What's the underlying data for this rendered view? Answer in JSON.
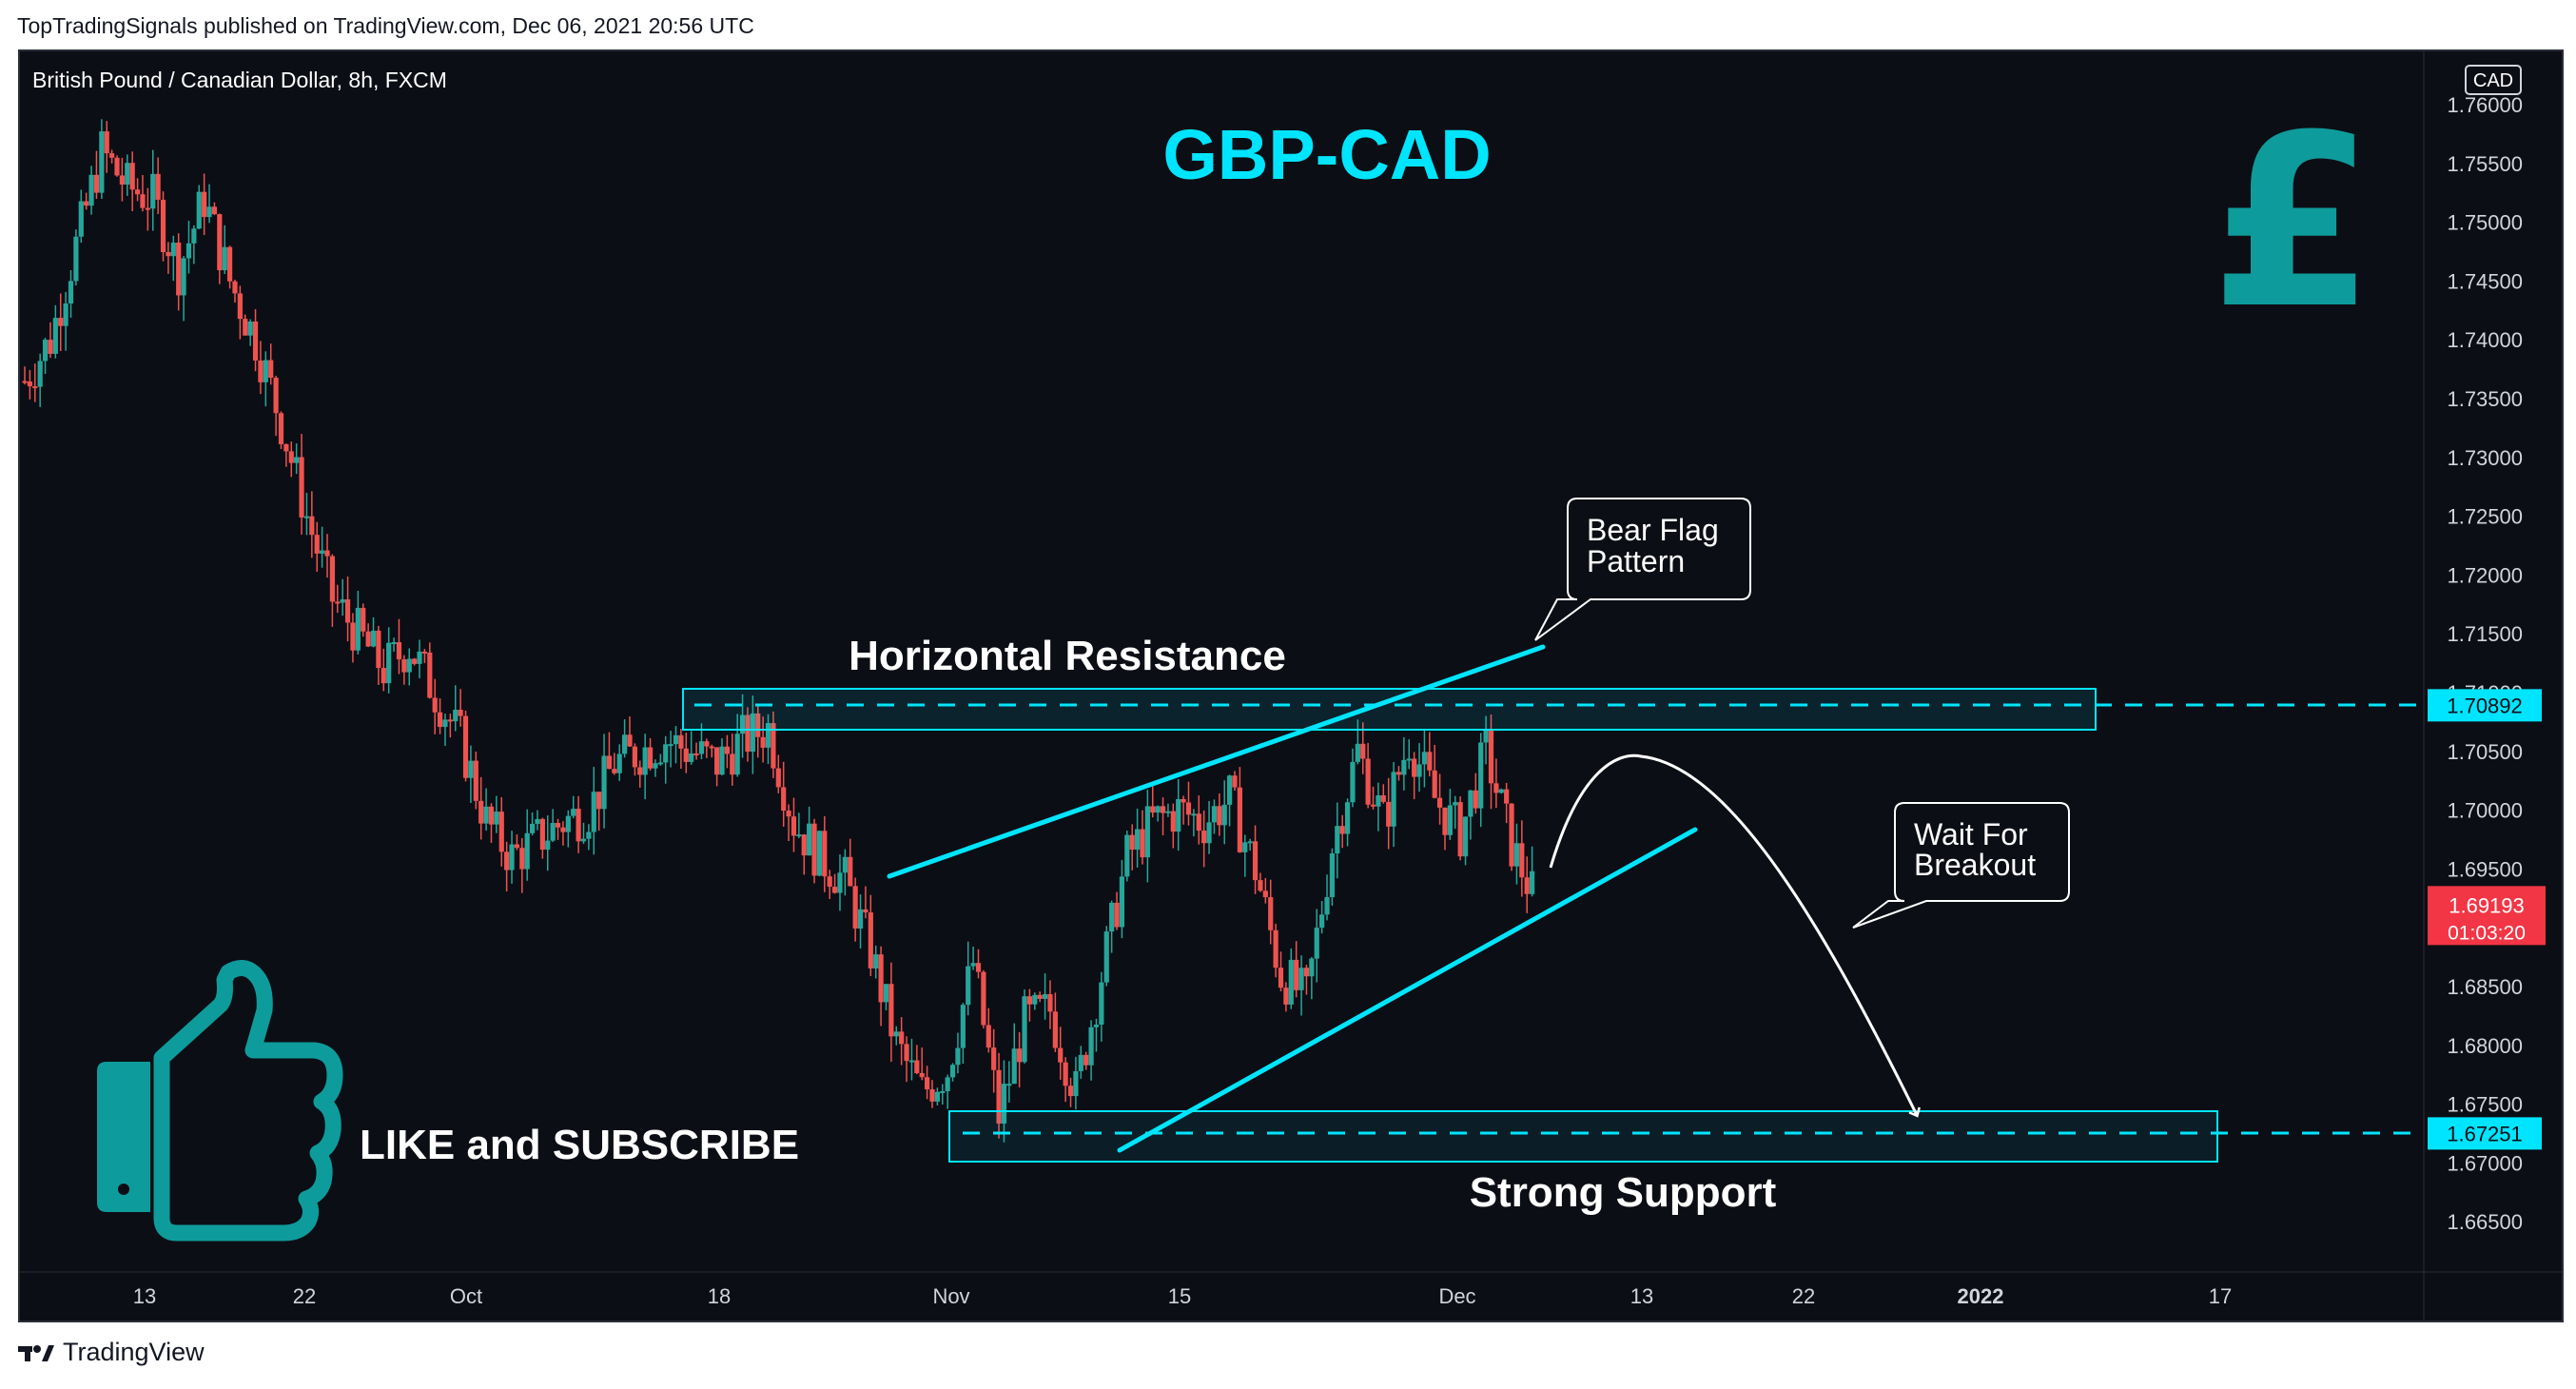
{
  "header": {
    "publisher_line": "TopTradingSignals published on TradingView.com, Dec 06, 2021 20:56 UTC"
  },
  "footer": {
    "brand": "TradingView"
  },
  "colors": {
    "background": "#0c0e15",
    "up": "#26a69a",
    "down": "#ef5350",
    "accent": "#00e5ff",
    "teal_icon": "#0e9b9b",
    "annotation": "#ffffff"
  },
  "chart_data": {
    "type": "candlestick",
    "symbol_line": "British Pound / Canadian Dollar, 8h, FXCM",
    "currency": "CAD",
    "title": "GBP-CAD",
    "ylim": [
      1.6625,
      1.7625
    ],
    "y_ticks": [
      "1.76000",
      "1.75500",
      "1.75000",
      "1.74500",
      "1.74000",
      "1.73500",
      "1.73000",
      "1.72500",
      "1.72000",
      "1.71500",
      "1.71000",
      "1.70500",
      "1.70000",
      "1.69500",
      "1.69000",
      "1.68500",
      "1.68000",
      "1.67500",
      "1.67000",
      "1.66500"
    ],
    "x_ticks": [
      "13",
      "22",
      "Oct",
      "18",
      "Nov",
      "15",
      "Dec",
      "13",
      "22",
      "2022",
      "17"
    ],
    "price_labels": [
      {
        "value": 1.70892,
        "text": "1.70892",
        "style": "cyan"
      },
      {
        "value": 1.67251,
        "text": "1.67251",
        "style": "cyan"
      },
      {
        "value": 1.69193,
        "text": "1.69193",
        "style": "red",
        "countdown": "01:03:20"
      }
    ],
    "candles_approx_path": [
      1.7365,
      1.74,
      1.748,
      1.756,
      1.753,
      1.752,
      1.746,
      1.752,
      1.745,
      1.74,
      1.733,
      1.725,
      1.718,
      1.715,
      1.712,
      1.714,
      1.71,
      1.706,
      1.699,
      1.696,
      1.6975,
      1.699,
      1.7,
      1.704,
      1.705,
      1.706,
      1.705,
      1.704,
      1.706,
      1.707,
      1.699,
      1.696,
      1.694,
      1.688,
      1.68,
      1.676,
      1.678,
      1.687,
      1.674,
      1.682,
      1.683,
      1.676,
      1.686,
      1.696,
      1.699,
      1.7,
      1.699,
      1.701,
      1.695,
      1.686,
      1.684,
      1.697,
      1.705,
      1.699,
      1.706,
      1.701,
      1.698,
      1.705,
      1.697,
      1.6919
    ],
    "zones": [
      {
        "label": "Horizontal Resistance",
        "from": 1.7068,
        "to": 1.7105,
        "level": 1.70892
      },
      {
        "label": "Strong Support",
        "from": 1.6702,
        "to": 1.6743,
        "level": 1.67251
      }
    ],
    "annotations": {
      "bear_flag": [
        "Bear Flag",
        "Pattern"
      ],
      "wait": [
        "Wait For",
        "Breakout"
      ]
    },
    "promo_text": "LIKE and SUBSCRIBE"
  }
}
